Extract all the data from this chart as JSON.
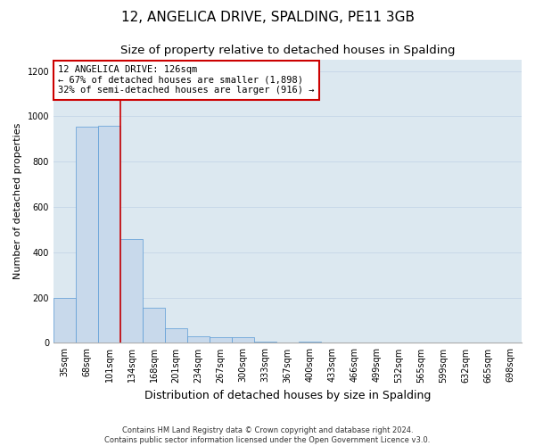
{
  "title": "12, ANGELICA DRIVE, SPALDING, PE11 3GB",
  "subtitle": "Size of property relative to detached houses in Spalding",
  "xlabel": "Distribution of detached houses by size in Spalding",
  "ylabel": "Number of detached properties",
  "categories": [
    "35sqm",
    "68sqm",
    "101sqm",
    "134sqm",
    "168sqm",
    "201sqm",
    "234sqm",
    "267sqm",
    "300sqm",
    "333sqm",
    "367sqm",
    "400sqm",
    "433sqm",
    "466sqm",
    "499sqm",
    "532sqm",
    "565sqm",
    "599sqm",
    "632sqm",
    "665sqm",
    "698sqm"
  ],
  "values": [
    200,
    955,
    960,
    460,
    155,
    65,
    30,
    25,
    25,
    5,
    0,
    5,
    0,
    0,
    0,
    0,
    0,
    0,
    0,
    0,
    0
  ],
  "bar_color": "#c8d9eb",
  "bar_edge_color": "#5b9bd5",
  "property_line_x": 2.5,
  "annotation_text": "12 ANGELICA DRIVE: 126sqm\n← 67% of detached houses are smaller (1,898)\n32% of semi-detached houses are larger (916) →",
  "annotation_box_facecolor": "#ffffff",
  "annotation_box_edgecolor": "#cc0000",
  "property_line_color": "#cc0000",
  "grid_color": "#c8d8e8",
  "plot_background": "#dce8f0",
  "ylim": [
    0,
    1250
  ],
  "yticks": [
    0,
    200,
    400,
    600,
    800,
    1000,
    1200
  ],
  "footer": "Contains HM Land Registry data © Crown copyright and database right 2024.\nContains public sector information licensed under the Open Government Licence v3.0.",
  "title_fontsize": 11,
  "subtitle_fontsize": 9.5,
  "xlabel_fontsize": 9,
  "ylabel_fontsize": 8,
  "tick_fontsize": 7,
  "annotation_fontsize": 7.5,
  "footer_fontsize": 6
}
